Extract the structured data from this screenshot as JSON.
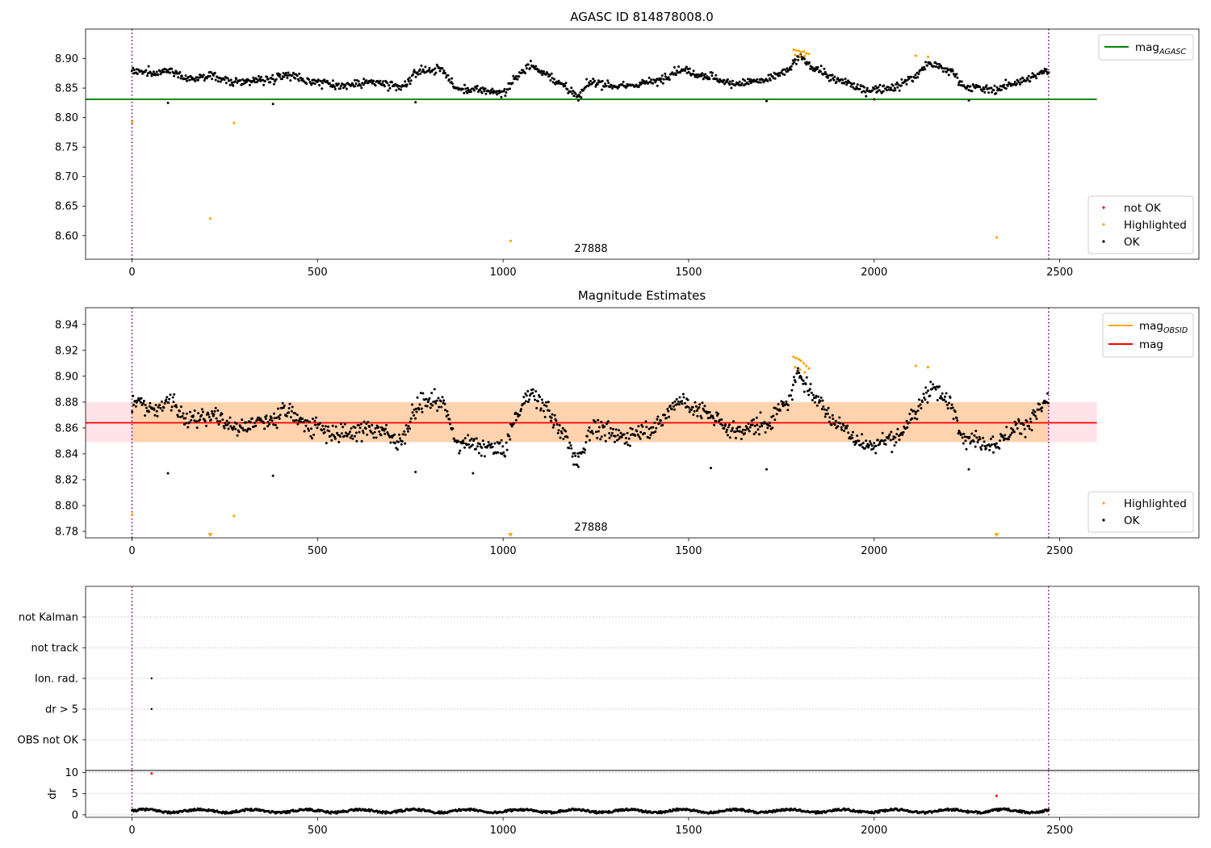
{
  "chart_data": [
    {
      "type": "scatter",
      "title": "AGASC ID 814878008.0",
      "xlim": [
        -125,
        2875
      ],
      "ylim": [
        8.56,
        8.95
      ],
      "x_ticks": [
        0,
        500,
        1000,
        1500,
        2000,
        2500
      ],
      "y_ticks": [
        8.6,
        8.65,
        8.7,
        8.75,
        8.8,
        8.85,
        8.9
      ],
      "vlines": [
        0,
        2470
      ],
      "hline": {
        "name": "mag",
        "subscript": "AGASC",
        "y": 8.831,
        "x_range": [
          -125,
          2600
        ],
        "color": "#008000"
      },
      "annotation": {
        "text": "27888",
        "x": 1240,
        "y": 8.572
      },
      "legend_lines": [
        {
          "name": "mag",
          "subscript": "AGASC",
          "color": "#008000"
        }
      ],
      "legend_points": [
        {
          "name": "not OK",
          "color": "#ff0000"
        },
        {
          "name": "Highlighted",
          "color": "#ffa500"
        },
        {
          "name": "OK",
          "color": "#000000"
        }
      ],
      "series": [
        {
          "name": "Highlighted",
          "color": "#ffa500",
          "points": [
            [
              1,
              8.792
            ],
            [
              275,
              8.791
            ],
            [
              211,
              8.629
            ],
            [
              1020,
              8.591
            ],
            [
              2330,
              8.597
            ],
            [
              1783,
              8.915
            ],
            [
              1790,
              8.914
            ],
            [
              1797,
              8.913
            ],
            [
              1803,
              8.911
            ],
            [
              1810,
              8.912
            ],
            [
              1817,
              8.909
            ],
            [
              1824,
              8.908
            ],
            [
              1787,
              8.906
            ],
            [
              1800,
              8.905
            ],
            [
              1813,
              8.904
            ],
            [
              2112,
              8.905
            ],
            [
              2145,
              8.903
            ]
          ]
        },
        {
          "name": "OK",
          "color": "#000000",
          "outliers": [
            [
              97,
              8.825
            ],
            [
              380,
              8.823
            ],
            [
              764,
              8.826
            ],
            [
              1710,
              8.828
            ],
            [
              1203,
              8.829
            ],
            [
              2000,
              8.831
            ],
            [
              2255,
              8.829
            ]
          ],
          "trend": [
            [
              0,
              8.88
            ],
            [
              60,
              8.874
            ],
            [
              100,
              8.882
            ],
            [
              150,
              8.867
            ],
            [
              220,
              8.869
            ],
            [
              280,
              8.86
            ],
            [
              360,
              8.865
            ],
            [
              420,
              8.873
            ],
            [
              480,
              8.862
            ],
            [
              560,
              8.855
            ],
            [
              650,
              8.86
            ],
            [
              720,
              8.851
            ],
            [
              780,
              8.879
            ],
            [
              830,
              8.882
            ],
            [
              880,
              8.848
            ],
            [
              920,
              8.847
            ],
            [
              1000,
              8.843
            ],
            [
              1040,
              8.87
            ],
            [
              1070,
              8.888
            ],
            [
              1110,
              8.877
            ],
            [
              1160,
              8.856
            ],
            [
              1200,
              8.836
            ],
            [
              1240,
              8.86
            ],
            [
              1320,
              8.853
            ],
            [
              1400,
              8.86
            ],
            [
              1480,
              8.881
            ],
            [
              1540,
              8.872
            ],
            [
              1620,
              8.858
            ],
            [
              1700,
              8.862
            ],
            [
              1760,
              8.877
            ],
            [
              1800,
              8.901
            ],
            [
              1840,
              8.884
            ],
            [
              1900,
              8.863
            ],
            [
              1980,
              8.847
            ],
            [
              2060,
              8.852
            ],
            [
              2100,
              8.867
            ],
            [
              2150,
              8.891
            ],
            [
              2200,
              8.88
            ],
            [
              2250,
              8.852
            ],
            [
              2320,
              8.848
            ],
            [
              2400,
              8.862
            ],
            [
              2470,
              8.879
            ]
          ],
          "x_range": [
            0,
            2470
          ],
          "count": 1150,
          "spread": 0.006
        }
      ]
    },
    {
      "type": "scatter",
      "title": "Magnitude Estimates",
      "xlim": [
        -125,
        2875
      ],
      "ylim": [
        8.775,
        8.953
      ],
      "x_ticks": [
        0,
        500,
        1000,
        1500,
        2000,
        2500
      ],
      "y_ticks": [
        8.78,
        8.8,
        8.82,
        8.84,
        8.86,
        8.88,
        8.9,
        8.92,
        8.94
      ],
      "vlines": [
        0,
        2470
      ],
      "band": {
        "y1": 8.849,
        "y2": 8.88,
        "x_range": [
          -125,
          2600
        ]
      },
      "hline": {
        "name": "mag",
        "y": 8.864,
        "x_range": [
          -125,
          2600
        ],
        "color": "#ff0000"
      },
      "annotation": {
        "text": "27888",
        "x": 1240,
        "y": 8.779
      },
      "legend_lines": [
        {
          "name": "mag",
          "subscript": "OBSID",
          "color": "#ffa500"
        },
        {
          "name": "mag",
          "color": "#ff0000"
        }
      ],
      "legend_points": [
        {
          "name": "Highlighted",
          "color": "#ffa500"
        },
        {
          "name": "OK",
          "color": "#000000"
        }
      ],
      "clipped_markers": [
        [
          211,
          8.776
        ],
        [
          1020,
          8.776
        ],
        [
          2330,
          8.776
        ]
      ],
      "series": [
        {
          "name": "Highlighted",
          "color": "#ffa500",
          "points": [
            [
              1,
              8.793
            ],
            [
              275,
              8.792
            ],
            [
              1783,
              8.915
            ],
            [
              1790,
              8.914
            ],
            [
              1797,
              8.913
            ],
            [
              1803,
              8.912
            ],
            [
              1810,
              8.91
            ],
            [
              1817,
              8.908
            ],
            [
              1824,
              8.906
            ],
            [
              1787,
              8.907
            ],
            [
              1800,
              8.905
            ],
            [
              1813,
              8.903
            ],
            [
              2112,
              8.908
            ],
            [
              2145,
              8.907
            ]
          ]
        },
        {
          "name": "OK",
          "color": "#000000",
          "outliers": [
            [
              97,
              8.825
            ],
            [
              380,
              8.823
            ],
            [
              764,
              8.826
            ],
            [
              1710,
              8.828
            ],
            [
              1560,
              8.829
            ],
            [
              1203,
              8.83
            ],
            [
              2255,
              8.828
            ],
            [
              919,
              8.825
            ]
          ],
          "trend": [
            [
              0,
              8.88
            ],
            [
              60,
              8.874
            ],
            [
              100,
              8.882
            ],
            [
              150,
              8.867
            ],
            [
              220,
              8.869
            ],
            [
              280,
              8.86
            ],
            [
              360,
              8.865
            ],
            [
              420,
              8.873
            ],
            [
              480,
              8.862
            ],
            [
              560,
              8.855
            ],
            [
              650,
              8.86
            ],
            [
              720,
              8.851
            ],
            [
              780,
              8.879
            ],
            [
              830,
              8.882
            ],
            [
              880,
              8.848
            ],
            [
              920,
              8.847
            ],
            [
              1000,
              8.843
            ],
            [
              1040,
              8.87
            ],
            [
              1070,
              8.888
            ],
            [
              1110,
              8.877
            ],
            [
              1160,
              8.856
            ],
            [
              1200,
              8.836
            ],
            [
              1240,
              8.86
            ],
            [
              1320,
              8.853
            ],
            [
              1400,
              8.86
            ],
            [
              1480,
              8.881
            ],
            [
              1540,
              8.872
            ],
            [
              1620,
              8.858
            ],
            [
              1700,
              8.862
            ],
            [
              1760,
              8.877
            ],
            [
              1800,
              8.901
            ],
            [
              1840,
              8.884
            ],
            [
              1900,
              8.863
            ],
            [
              1980,
              8.847
            ],
            [
              2060,
              8.852
            ],
            [
              2100,
              8.867
            ],
            [
              2150,
              8.891
            ],
            [
              2200,
              8.88
            ],
            [
              2250,
              8.852
            ],
            [
              2320,
              8.848
            ],
            [
              2400,
              8.862
            ],
            [
              2470,
              8.879
            ]
          ],
          "x_range": [
            0,
            2470
          ],
          "count": 1150,
          "spread": 0.006
        }
      ]
    },
    {
      "type": "scatter",
      "xlim": [
        -125,
        2875
      ],
      "categories": [
        "not Kalman",
        "not track",
        "Ion. rad.",
        "dr > 5",
        "OBS not OK"
      ],
      "vlines": [
        0,
        2470
      ],
      "points": [
        [
          53,
          "Ion. rad."
        ],
        [
          53,
          "dr > 5"
        ]
      ]
    },
    {
      "type": "scatter",
      "ylabel": "dr",
      "xlim": [
        -125,
        2875
      ],
      "ylim": [
        -0.6,
        10.5
      ],
      "x_ticks": [
        0,
        500,
        1000,
        1500,
        2000,
        2500
      ],
      "y_ticks": [
        0,
        5,
        10
      ],
      "vlines": [
        0,
        2470
      ],
      "red_points": [
        [
          53,
          9.8
        ],
        [
          2330,
          4.5
        ]
      ],
      "dense": {
        "x_range": [
          0,
          2470
        ],
        "count": 1100,
        "base": 0.9,
        "amp": 0.5,
        "color": "#000000"
      }
    }
  ]
}
